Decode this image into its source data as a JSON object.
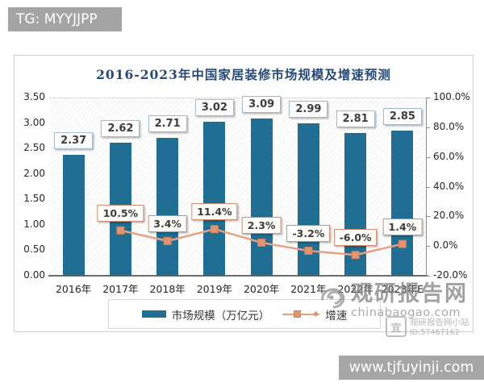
{
  "header": {
    "badge": "TG: MYYJJPP"
  },
  "chart_data": {
    "type": "combo",
    "title": "2016-2023年中国家居装修市场规模及增速预测",
    "categories": [
      "2016年",
      "2017年",
      "2018年",
      "2019年",
      "2020年",
      "2021年",
      "2022年",
      "2023年E"
    ],
    "series": [
      {
        "name": "市场规模（万亿元）",
        "type": "bar",
        "values": [
          2.37,
          2.62,
          2.71,
          3.02,
          3.09,
          2.99,
          2.81,
          2.85
        ]
      },
      {
        "name": "增速",
        "type": "line",
        "unit": "%",
        "values": [
          null,
          10.5,
          3.4,
          11.4,
          2.3,
          -3.2,
          -6.0,
          1.4
        ]
      }
    ],
    "bar_labels": [
      "2.37",
      "2.62",
      "2.71",
      "3.02",
      "3.09",
      "2.99",
      "2.81",
      "2.85"
    ],
    "line_labels": [
      null,
      "10.5%",
      "3.4%",
      "11.4%",
      "2.3%",
      "-3.2%",
      "-6.0%",
      "1.4%"
    ],
    "left_axis": {
      "min": 0,
      "max": 3.5,
      "ticks": [
        "3.50",
        "3.00",
        "2.50",
        "2.00",
        "1.50",
        "1.00",
        "0.50",
        "0.00"
      ]
    },
    "right_axis": {
      "min": -20,
      "max": 100,
      "ticks": [
        "100.0%",
        "80.0%",
        "60.0%",
        "40.0%",
        "20.0%",
        "0.0%",
        "-20.0%"
      ]
    },
    "legend_position": "bottom",
    "grid": "top-dotted-only"
  },
  "legend": {
    "items": [
      {
        "label": "市场规模（万亿元）",
        "type": "bar"
      },
      {
        "label": "增速",
        "type": "line"
      }
    ]
  },
  "watermark": {
    "site_name": "观研报告网",
    "site_url": "chinabaogao.com",
    "seal_char": "宜",
    "small_text": "观研报告网小站",
    "small_id": "ID:57467162"
  },
  "footer": {
    "url": "www.tjfuyinji.com"
  },
  "colors": {
    "bar": "#206e91",
    "line": "#e7a083",
    "marker_fill": "#e2936f",
    "marker_stroke": "#d3825e",
    "title": "#27497a",
    "badge_bg": "#a4a4a4",
    "footer_bg": "#a6a6a6"
  }
}
